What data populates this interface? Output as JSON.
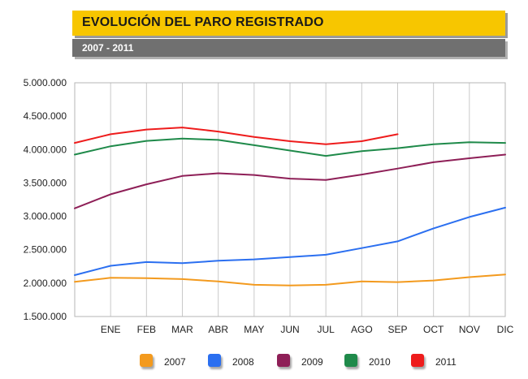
{
  "header": {
    "title": "EVOLUCIÓN DEL PARO REGISTRADO",
    "subtitle": "2007 - 2011"
  },
  "chart_data": {
    "type": "line",
    "title": "EVOLUCIÓN DEL PARO REGISTRADO",
    "subtitle": "2007 - 2011",
    "xlabel": "",
    "ylabel": "",
    "categories": [
      "",
      "ENE",
      "FEB",
      "MAR",
      "ABR",
      "MAY",
      "JUN",
      "JUL",
      "AGO",
      "SEP",
      "OCT",
      "NOV",
      "DIC"
    ],
    "ylim": [
      1500000,
      5000000
    ],
    "yticks": [
      1500000,
      2000000,
      2500000,
      3000000,
      3500000,
      4000000,
      4500000,
      5000000
    ],
    "ytick_labels": [
      "1.500.000",
      "2.000.000",
      "2.500.000",
      "3.000.000",
      "3.500.000",
      "4.000.000",
      "4.500.000",
      "5.000.000"
    ],
    "grid": "vertical",
    "legend_position": "bottom",
    "series": [
      {
        "name": "2007",
        "color": "#f39a1e",
        "values": [
          2020000,
          2080000,
          2075000,
          2060000,
          2025000,
          1975000,
          1965000,
          1975000,
          2025000,
          2015000,
          2040000,
          2090000,
          2130000
        ]
      },
      {
        "name": "2008",
        "color": "#2b6ff0",
        "values": [
          2120000,
          2260000,
          2315000,
          2300000,
          2335000,
          2355000,
          2390000,
          2425000,
          2525000,
          2625000,
          2820000,
          2990000,
          3130000
        ]
      },
      {
        "name": "2009",
        "color": "#8e1f57",
        "values": [
          3120000,
          3330000,
          3480000,
          3605000,
          3645000,
          3620000,
          3565000,
          3545000,
          3625000,
          3715000,
          3810000,
          3870000,
          3925000
        ]
      },
      {
        "name": "2010",
        "color": "#1f8a4a",
        "values": [
          3925000,
          4050000,
          4130000,
          4165000,
          4145000,
          4065000,
          3985000,
          3905000,
          3975000,
          4020000,
          4080000,
          4110000,
          4100000
        ]
      },
      {
        "name": "2011",
        "color": "#ee1c1c",
        "values": [
          4100000,
          4230000,
          4300000,
          4330000,
          4270000,
          4190000,
          4125000,
          4080000,
          4125000,
          4230000,
          null,
          null,
          null
        ]
      }
    ]
  }
}
